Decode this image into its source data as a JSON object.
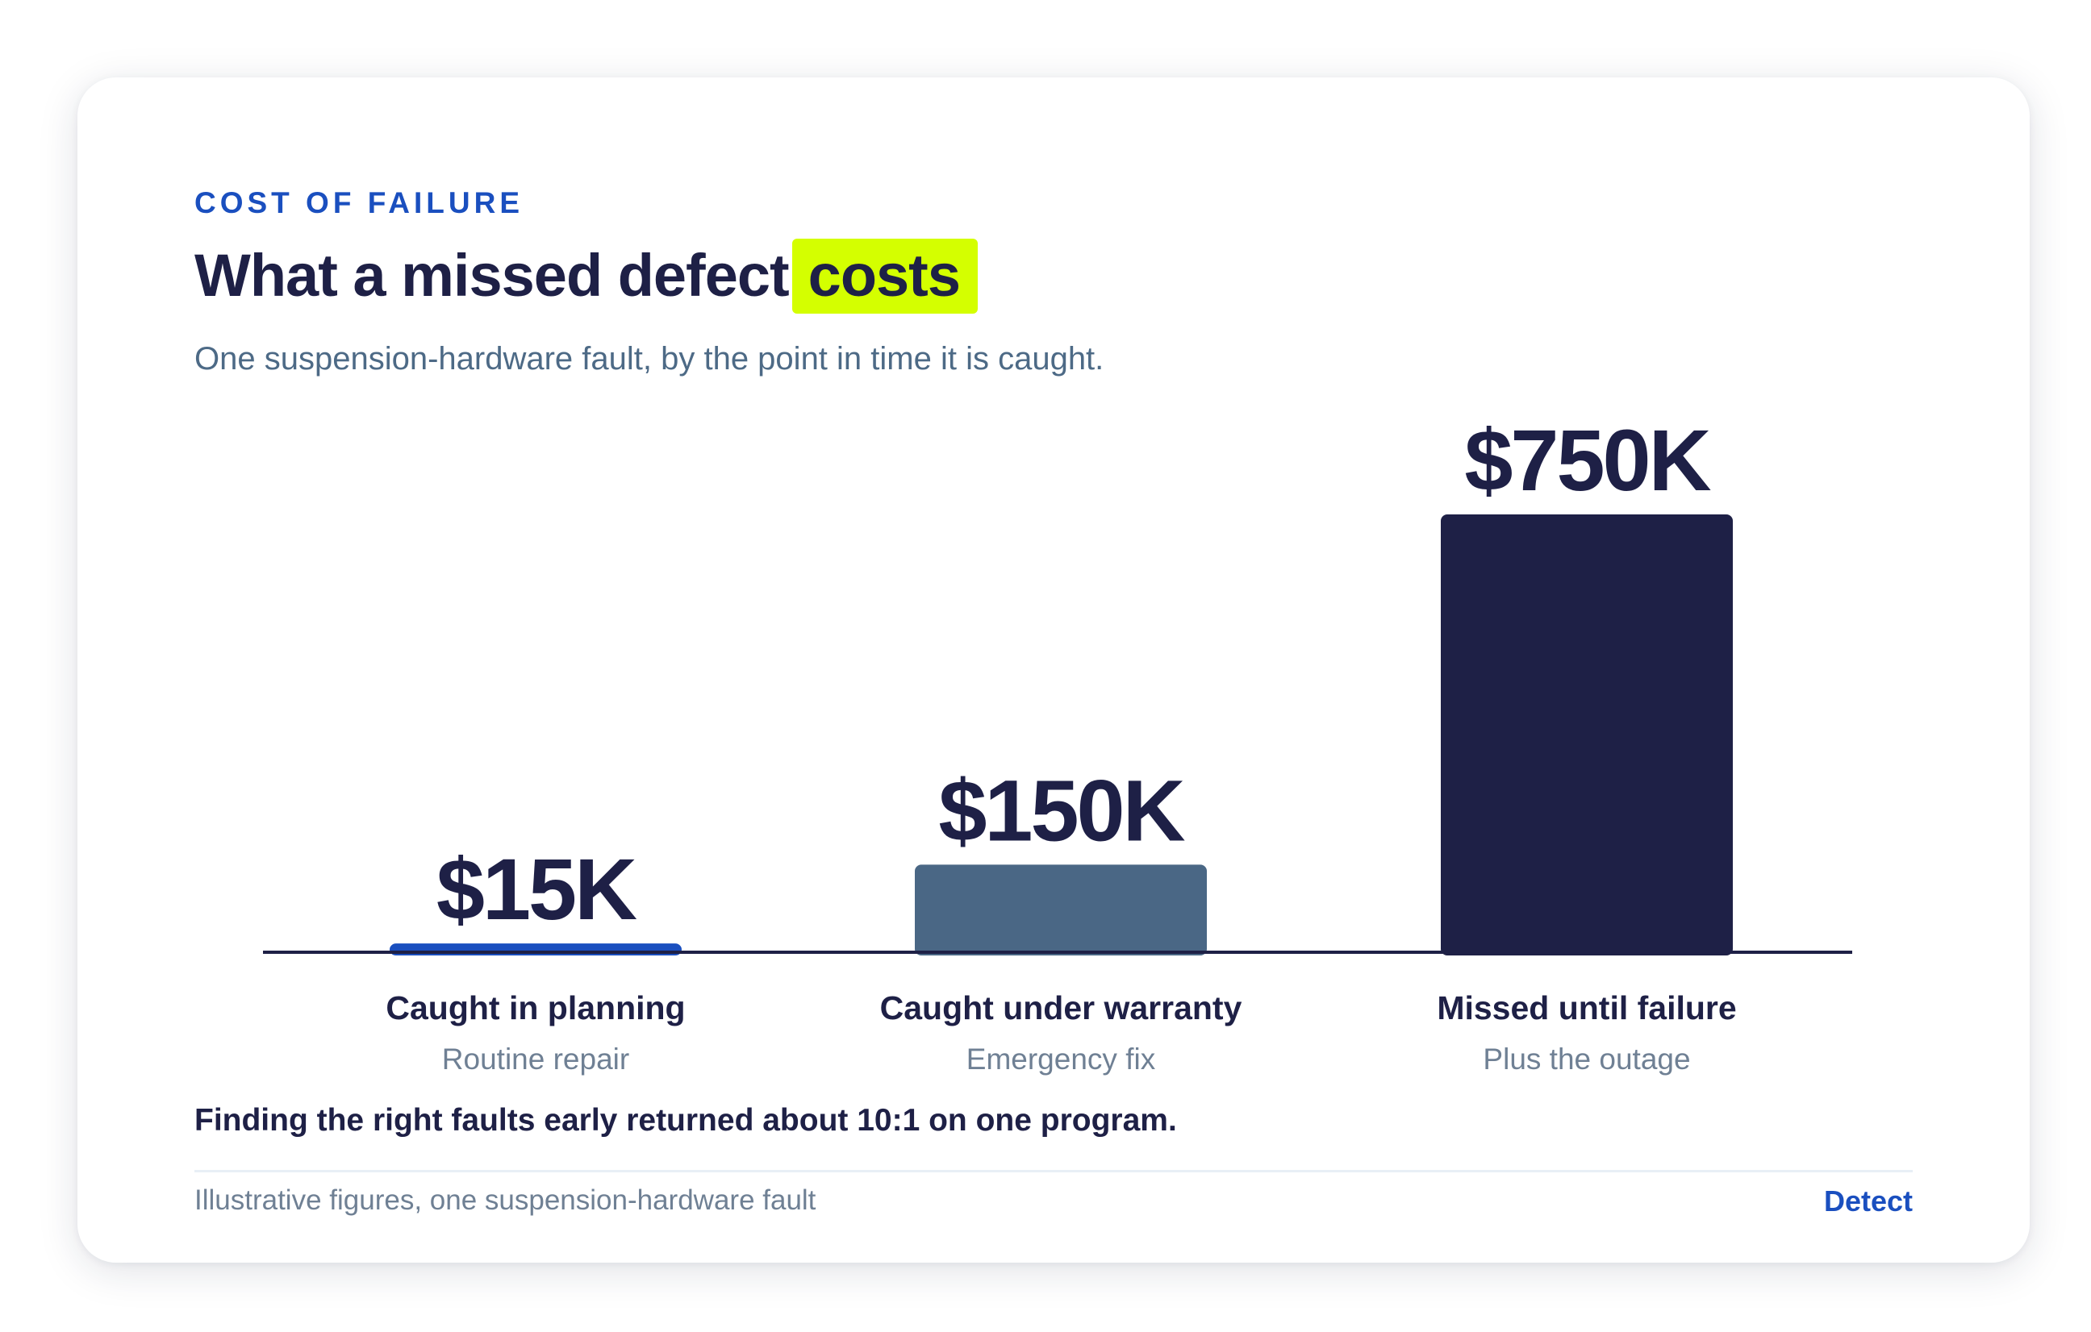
{
  "eyebrow": "COST OF FAILURE",
  "title": {
    "main": "What a missed defect",
    "highlight": "costs"
  },
  "subtitle": "One suspension-hardware fault, by the point in time it is caught.",
  "takeaway": "Finding the right faults early returned about 10:1 on one program.",
  "footer": {
    "note": "Illustrative figures, one suspension-hardware fault",
    "brand": "Detect"
  },
  "colors": {
    "accent": "#1a4fbf",
    "highlight": "#d4ff00",
    "ink": "#1e2046",
    "slate": "#4a6785",
    "muted": "#6f8094"
  },
  "chart_data": {
    "type": "bar",
    "categories": [
      "Caught in planning",
      "Caught under warranty",
      "Missed until failure"
    ],
    "sublabels": [
      "Routine repair",
      "Emergency fix",
      "Plus the outage"
    ],
    "values": [
      15000,
      150000,
      750000
    ],
    "value_labels": [
      "$15K",
      "$150K",
      "$750K"
    ],
    "bar_colors": [
      "#1a4fbf",
      "#4a6785",
      "#1e2046"
    ],
    "ylim": [
      0,
      750000
    ],
    "grid": false,
    "legend": "none"
  }
}
